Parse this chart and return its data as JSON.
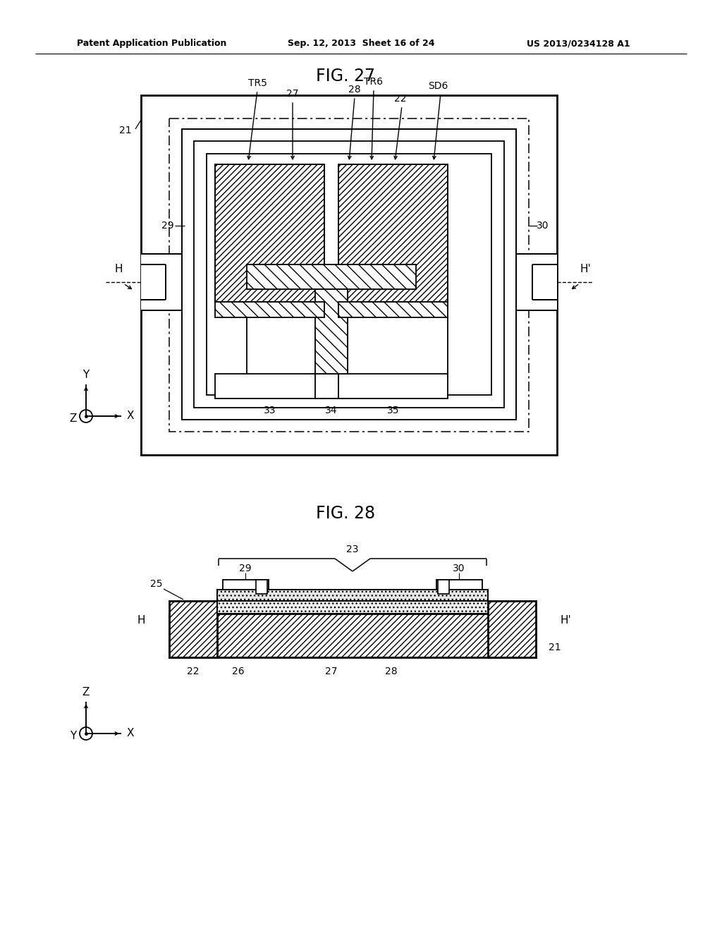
{
  "bg_color": "#ffffff",
  "header_left": "Patent Application Publication",
  "header_center": "Sep. 12, 2013  Sheet 16 of 24",
  "header_right": "US 2013/0234128 A1",
  "fig27_title": "FIG. 27",
  "fig28_title": "FIG. 28",
  "line_color": "#000000"
}
